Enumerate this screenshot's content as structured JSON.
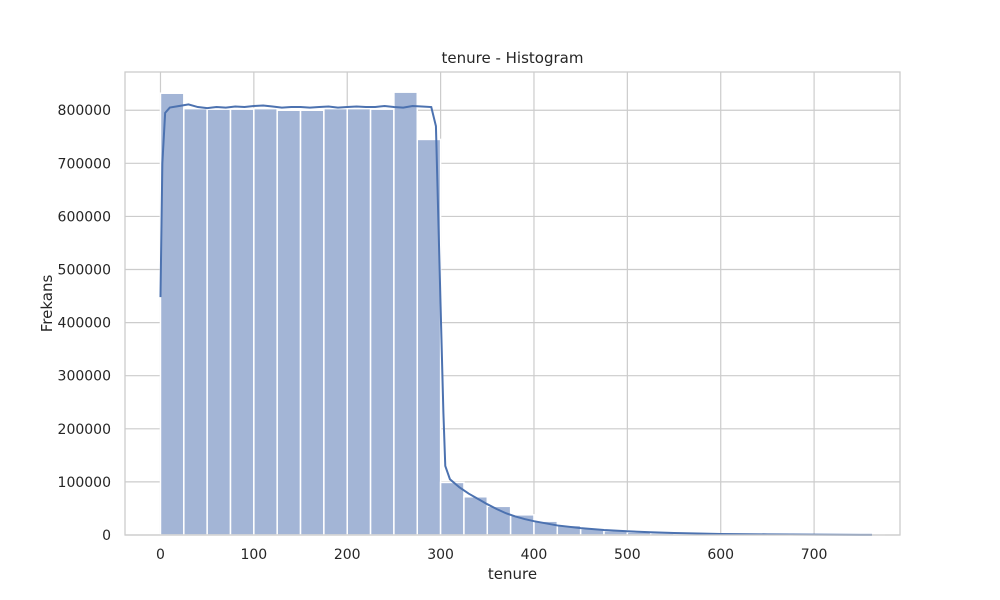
{
  "chart_data": {
    "type": "bar",
    "title": "tenure - Histogram",
    "xlabel": "tenure",
    "ylabel": "Frekans",
    "xlim": [
      -38,
      792
    ],
    "ylim": [
      0,
      872000
    ],
    "xticks": [
      0,
      100,
      200,
      300,
      400,
      500,
      600,
      700
    ],
    "yticks": [
      0,
      100000,
      200000,
      300000,
      400000,
      500000,
      600000,
      700000,
      800000
    ],
    "grid": true,
    "bin_width": 25,
    "bins": [
      {
        "x0": 0,
        "x1": 25,
        "count": 832000
      },
      {
        "x0": 25,
        "x1": 50,
        "count": 803000
      },
      {
        "x0": 50,
        "x1": 75,
        "count": 802000
      },
      {
        "x0": 75,
        "x1": 100,
        "count": 802000
      },
      {
        "x0": 100,
        "x1": 125,
        "count": 803000
      },
      {
        "x0": 125,
        "x1": 150,
        "count": 800000
      },
      {
        "x0": 150,
        "x1": 175,
        "count": 800000
      },
      {
        "x0": 175,
        "x1": 200,
        "count": 803000
      },
      {
        "x0": 200,
        "x1": 225,
        "count": 803000
      },
      {
        "x0": 225,
        "x1": 250,
        "count": 802000
      },
      {
        "x0": 250,
        "x1": 275,
        "count": 834000
      },
      {
        "x0": 275,
        "x1": 300,
        "count": 745000
      },
      {
        "x0": 300,
        "x1": 325,
        "count": 99000
      },
      {
        "x0": 325,
        "x1": 350,
        "count": 72000
      },
      {
        "x0": 350,
        "x1": 375,
        "count": 54000
      },
      {
        "x0": 375,
        "x1": 400,
        "count": 38000
      },
      {
        "x0": 400,
        "x1": 425,
        "count": 26000
      },
      {
        "x0": 425,
        "x1": 450,
        "count": 18000
      },
      {
        "x0": 450,
        "x1": 475,
        "count": 12000
      },
      {
        "x0": 475,
        "x1": 500,
        "count": 8000
      },
      {
        "x0": 500,
        "x1": 525,
        "count": 5500
      },
      {
        "x0": 525,
        "x1": 550,
        "count": 3800
      },
      {
        "x0": 550,
        "x1": 575,
        "count": 2600
      },
      {
        "x0": 575,
        "x1": 600,
        "count": 1800
      },
      {
        "x0": 600,
        "x1": 625,
        "count": 1200
      },
      {
        "x0": 625,
        "x1": 650,
        "count": 900
      },
      {
        "x0": 650,
        "x1": 675,
        "count": 600
      },
      {
        "x0": 675,
        "x1": 700,
        "count": 400
      },
      {
        "x0": 700,
        "x1": 725,
        "count": 300
      },
      {
        "x0": 725,
        "x1": 750,
        "count": 200
      },
      {
        "x0": 750,
        "x1": 775,
        "count": 100
      }
    ],
    "kde": {
      "x": [
        0,
        2,
        5,
        10,
        20,
        30,
        40,
        50,
        60,
        70,
        80,
        90,
        100,
        110,
        120,
        130,
        140,
        150,
        160,
        170,
        180,
        190,
        200,
        210,
        220,
        230,
        240,
        250,
        260,
        270,
        280,
        290,
        295,
        300,
        303,
        305,
        310,
        320,
        330,
        340,
        350,
        360,
        370,
        380,
        390,
        400,
        425,
        450,
        475,
        500,
        525,
        550,
        575,
        600,
        650,
        700,
        750,
        762
      ],
      "y": [
        448000,
        700000,
        795000,
        805000,
        808000,
        811000,
        806000,
        804000,
        806000,
        805000,
        807000,
        806000,
        808000,
        809000,
        807000,
        805000,
        806000,
        806000,
        805000,
        806000,
        807000,
        805000,
        806000,
        807000,
        806000,
        806000,
        808000,
        806000,
        805000,
        808000,
        807000,
        806000,
        770000,
        430000,
        230000,
        130000,
        105000,
        90000,
        78000,
        68000,
        58000,
        49000,
        41000,
        35000,
        30000,
        26000,
        18000,
        13000,
        9500,
        7000,
        5200,
        3800,
        2800,
        2000,
        1200,
        700,
        300,
        150
      ]
    },
    "colors": {
      "bar_fill": "#a3b5d6",
      "bar_edge": "#ffffff",
      "kde_line": "#4c72b0",
      "grid": "#cccccc",
      "frame": "#cccccc"
    }
  }
}
